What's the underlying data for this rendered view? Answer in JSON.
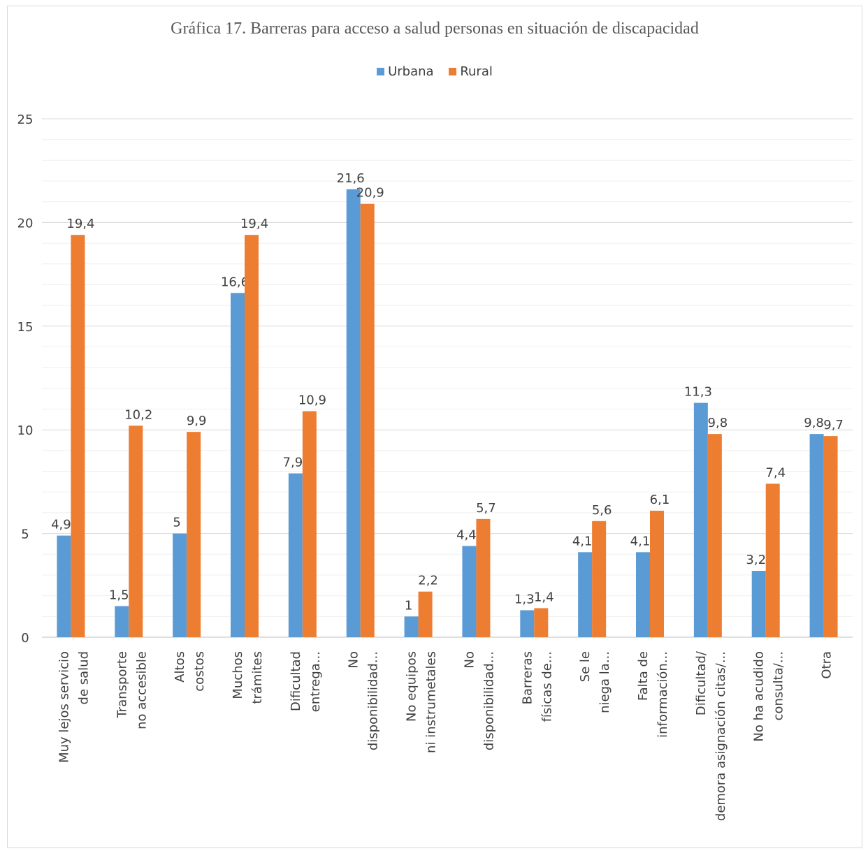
{
  "chart_data": {
    "type": "bar",
    "title": "Gráfica 17. Barreras para acceso a salud personas en situación de  discapacidad",
    "xlabel": "",
    "ylabel": "",
    "ylim": [
      0,
      25
    ],
    "yticks": [
      "0",
      "5",
      "10",
      "15",
      "20",
      "25"
    ],
    "grid": true,
    "legend_position": "top",
    "categories": [
      [
        "Muy lejos servicio",
        "de salud"
      ],
      [
        "Transporte",
        "no accesible"
      ],
      [
        "Altos",
        "costos"
      ],
      [
        "Muchos",
        "trámites"
      ],
      [
        "Dificultad",
        "entrega..."
      ],
      [
        "No",
        "disponibilidad..."
      ],
      [
        "No equipos",
        "ni instrumetales"
      ],
      [
        "No",
        "disponibilidad..."
      ],
      [
        "Barreras",
        "físicas de..."
      ],
      [
        "Se le",
        "niega la..."
      ],
      [
        "Falta de",
        "información..."
      ],
      [
        "Dificultad/",
        "demora asignación citas/..."
      ],
      [
        "No ha acudido",
        "consulta/..."
      ],
      [
        "Otra"
      ]
    ],
    "series": [
      {
        "name": "Urbana",
        "color": "#5b9bd5",
        "values": [
          4.9,
          1.5,
          5,
          16.6,
          7.9,
          21.6,
          1,
          4.4,
          1.3,
          4.1,
          4.1,
          11.3,
          3.2,
          9.8
        ],
        "labels": [
          "4,9",
          "1,5",
          "5",
          "16,6",
          "7,9",
          "21,6",
          "1",
          "4,4",
          "1,3",
          "4,1",
          "4,1",
          "11,3",
          "3,2",
          "9,8"
        ]
      },
      {
        "name": "Rural",
        "color": "#ed7d31",
        "values": [
          19.4,
          10.2,
          9.9,
          19.4,
          10.9,
          20.9,
          2.2,
          5.7,
          1.4,
          5.6,
          6.1,
          9.8,
          7.4,
          9.7
        ],
        "labels": [
          "19,4",
          "10,2",
          "9,9",
          "19,4",
          "10,9",
          "20,9",
          "2,2",
          "5,7",
          "1,4",
          "5,6",
          "6,1",
          "9,8",
          "7,4",
          "9,7"
        ]
      }
    ]
  }
}
